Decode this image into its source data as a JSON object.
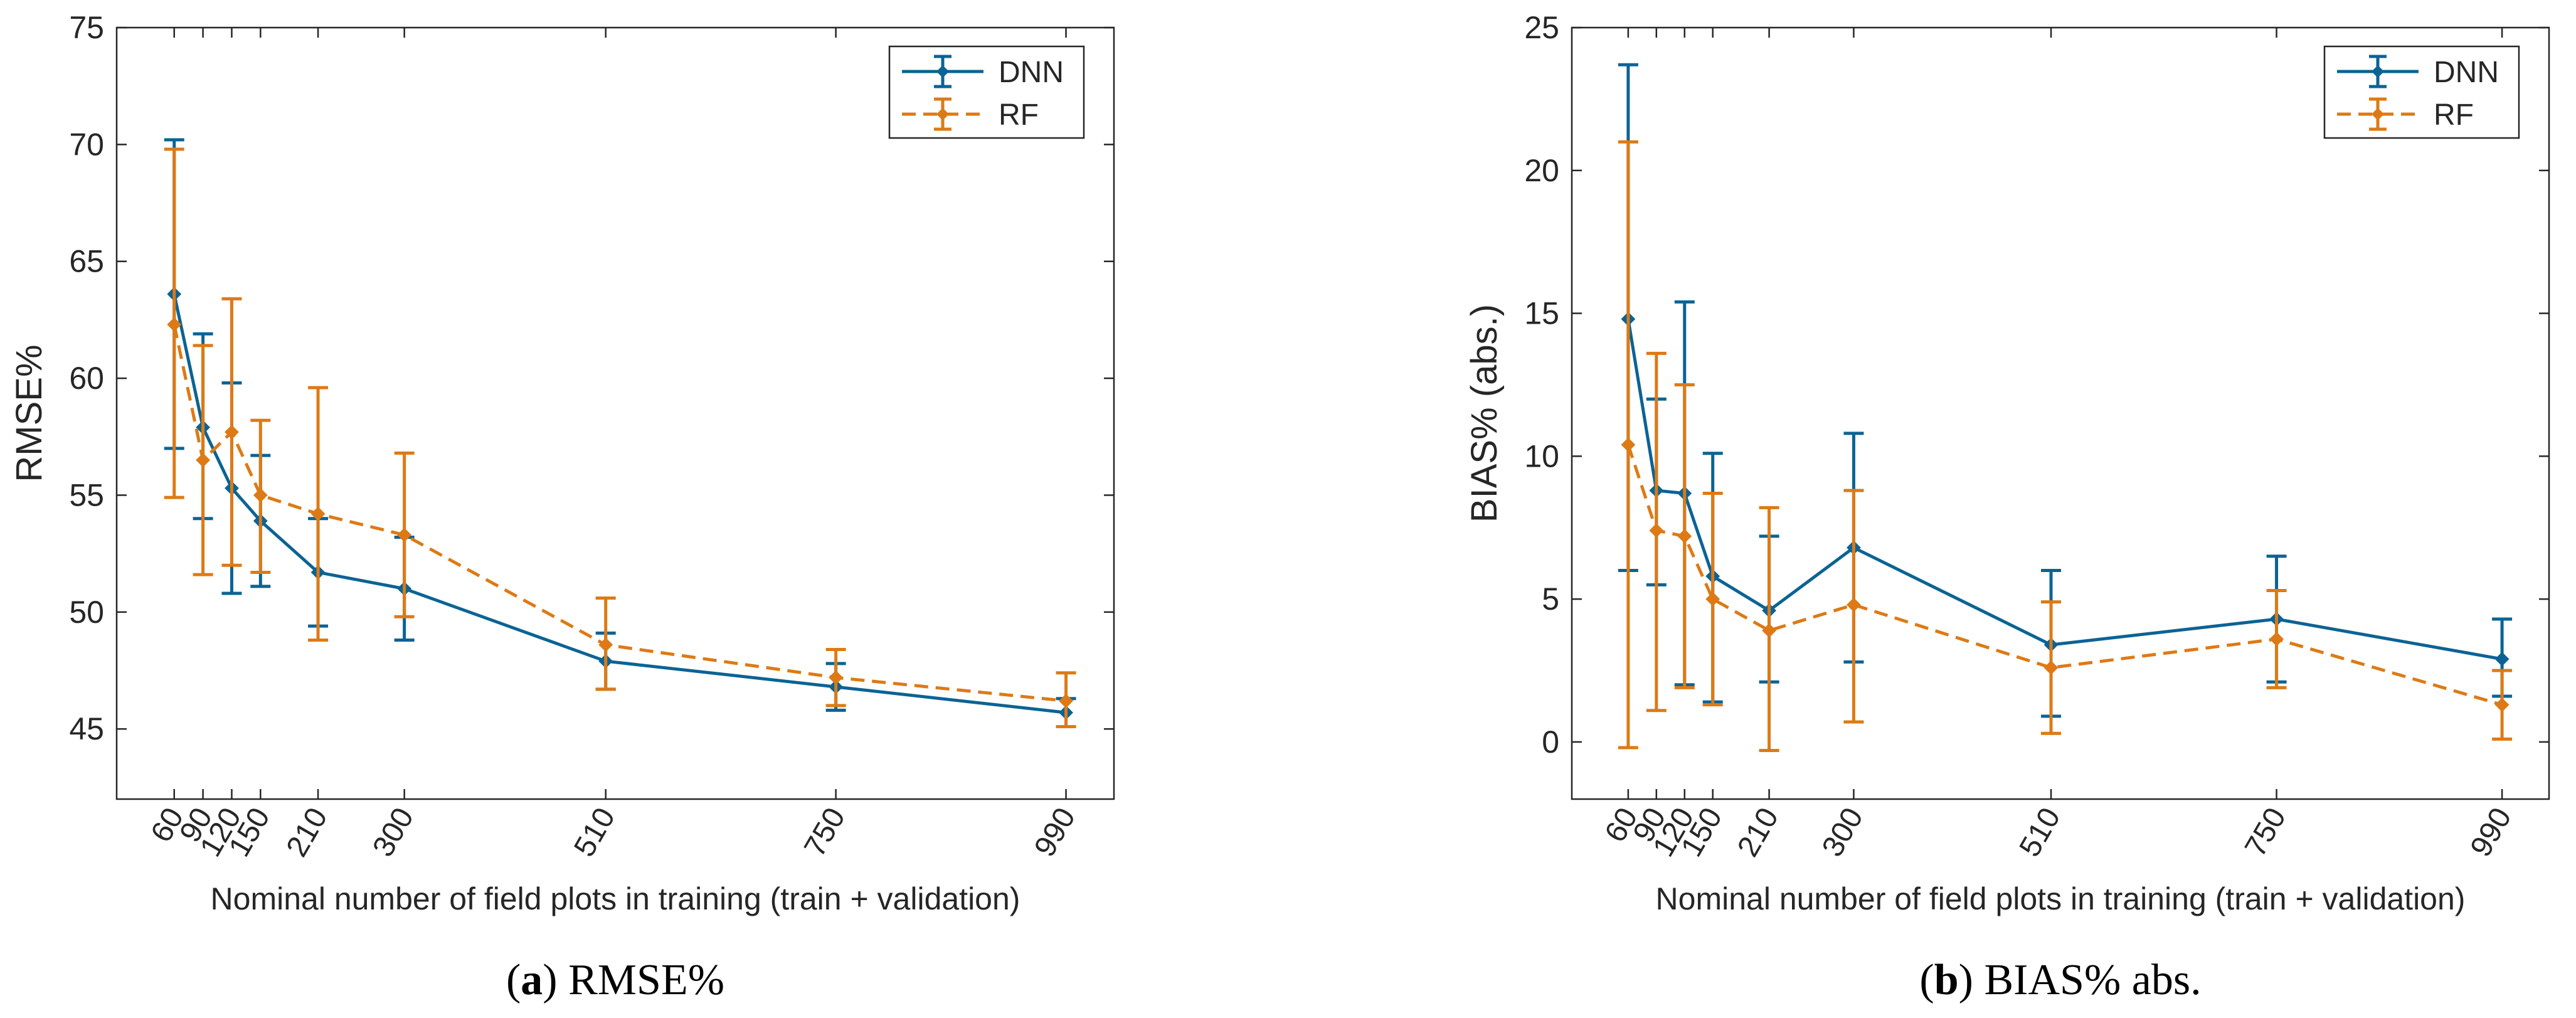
{
  "chart_data": [
    {
      "type": "line",
      "caption_letter": "a",
      "caption_text": " RMSE%",
      "xlabel": "Nominal number of field plots in training (train + validation)",
      "ylabel": "RMSE%",
      "x": [
        60,
        90,
        120,
        150,
        210,
        300,
        510,
        750,
        990
      ],
      "xlim": [
        0,
        1040
      ],
      "ylim": [
        42,
        75
      ],
      "yticks": [
        45,
        50,
        55,
        60,
        65,
        70,
        75
      ],
      "legend_position": "top-right",
      "series": [
        {
          "name": "DNN",
          "color": "#0b6394",
          "line_style": "solid",
          "values": [
            63.6,
            57.9,
            55.3,
            53.9,
            51.7,
            51.0,
            47.9,
            46.8,
            45.7
          ],
          "err_low": [
            57.0,
            54.0,
            50.8,
            51.1,
            49.4,
            48.8,
            46.7,
            45.8,
            45.1
          ],
          "err_high": [
            70.2,
            61.9,
            59.8,
            56.7,
            54.0,
            53.2,
            49.1,
            47.8,
            46.3
          ]
        },
        {
          "name": "RF",
          "color": "#dd7a15",
          "line_style": "dashed",
          "values": [
            62.3,
            56.5,
            57.7,
            55.0,
            54.2,
            53.3,
            48.6,
            47.2,
            46.2
          ],
          "err_low": [
            54.9,
            51.6,
            52.0,
            51.7,
            48.8,
            49.8,
            46.7,
            46.0,
            45.1
          ],
          "err_high": [
            69.8,
            61.4,
            63.4,
            58.2,
            59.6,
            56.8,
            50.6,
            48.4,
            47.4
          ]
        }
      ]
    },
    {
      "type": "line",
      "caption_letter": "b",
      "caption_text": " BIAS% abs.",
      "xlabel": "Nominal number of field plots in training (train + validation)",
      "ylabel": "BIAS% (abs.)",
      "x": [
        60,
        90,
        120,
        150,
        210,
        300,
        510,
        750,
        990
      ],
      "xlim": [
        0,
        1040
      ],
      "ylim": [
        -2,
        25
      ],
      "yticks": [
        0,
        5,
        10,
        15,
        20,
        25
      ],
      "legend_position": "top-right",
      "series": [
        {
          "name": "DNN",
          "color": "#0b6394",
          "line_style": "solid",
          "values": [
            14.8,
            8.8,
            8.7,
            5.8,
            4.6,
            6.8,
            3.4,
            4.3,
            2.9
          ],
          "err_low": [
            6.0,
            5.5,
            2.0,
            1.4,
            2.1,
            2.8,
            0.9,
            2.1,
            1.6
          ],
          "err_high": [
            23.7,
            12.0,
            15.4,
            10.1,
            7.2,
            10.8,
            6.0,
            6.5,
            4.3
          ]
        },
        {
          "name": "RF",
          "color": "#dd7a15",
          "line_style": "dashed",
          "values": [
            10.4,
            7.4,
            7.2,
            5.0,
            3.9,
            4.8,
            2.6,
            3.6,
            1.3
          ],
          "err_low": [
            -0.2,
            1.1,
            1.9,
            1.3,
            -0.3,
            0.7,
            0.3,
            1.9,
            0.1
          ],
          "err_high": [
            21.0,
            13.6,
            12.5,
            8.7,
            8.2,
            8.8,
            4.9,
            5.3,
            2.5
          ]
        }
      ]
    }
  ]
}
